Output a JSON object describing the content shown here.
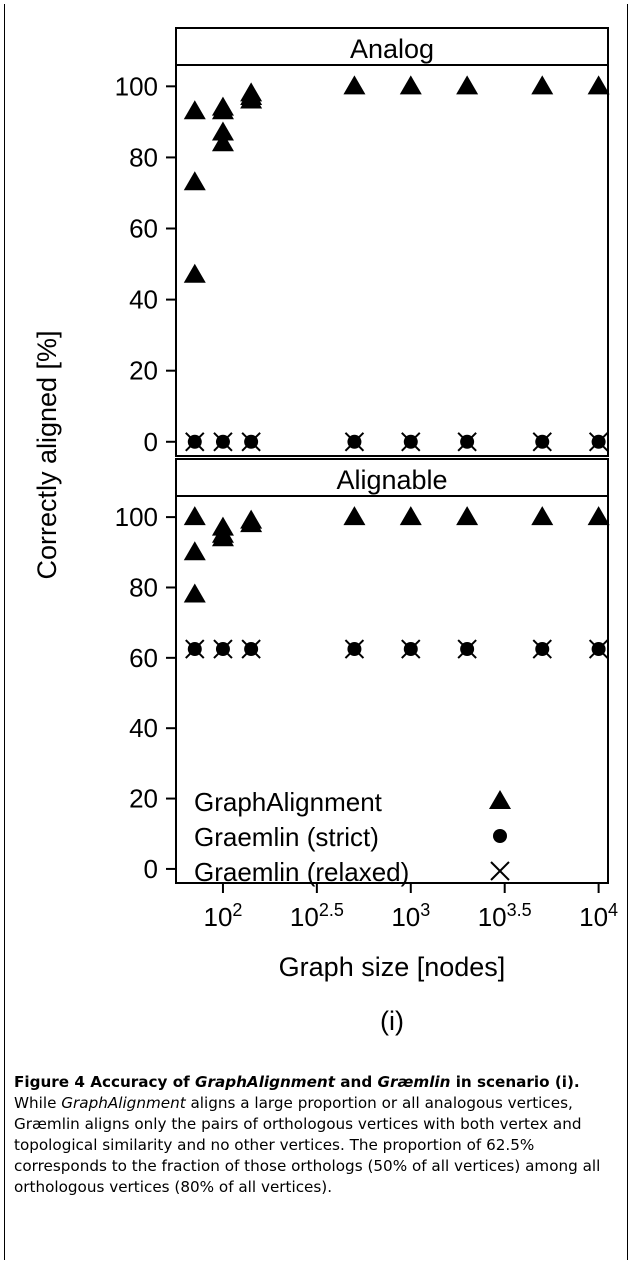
{
  "chart_data": {
    "type": "scatter",
    "panels": [
      {
        "strip_label": "Analog",
        "series": [
          {
            "name": "GraphAlignment",
            "x": [
              1.85,
              1.85,
              1.85,
              2,
              2,
              2,
              2,
              2.15,
              2.15,
              2.15,
              2.7,
              3,
              3.3,
              3.7,
              4
            ],
            "y": [
              47,
              73,
              93,
              84,
              87,
              93,
              94,
              96,
              97,
              98,
              100,
              100,
              100,
              100,
              100
            ]
          },
          {
            "name": "Graemlin (strict)",
            "x": [
              1.85,
              2,
              2.15,
              2.7,
              3,
              3.3,
              3.7,
              4
            ],
            "y": [
              0,
              0,
              0,
              0,
              0,
              0,
              0,
              0
            ]
          },
          {
            "name": "Graemlin (relaxed)",
            "x": [
              1.85,
              2,
              2.15,
              2.7,
              3,
              3.3,
              3.7,
              4
            ],
            "y": [
              0,
              0,
              0,
              0,
              0,
              0,
              0,
              0
            ]
          }
        ]
      },
      {
        "strip_label": "Alignable",
        "series": [
          {
            "name": "GraphAlignment",
            "x": [
              1.85,
              1.85,
              1.85,
              2,
              2,
              2,
              2.15,
              2.15,
              2.7,
              3,
              3.3,
              3.7,
              4
            ],
            "y": [
              78,
              90,
              100,
              94,
              95,
              97,
              98,
              99,
              100,
              100,
              100,
              100,
              100
            ]
          },
          {
            "name": "Graemlin (strict)",
            "x": [
              1.85,
              2,
              2.15,
              2.7,
              3,
              3.3,
              3.7,
              4
            ],
            "y": [
              62.5,
              62.5,
              62.5,
              62.5,
              62.5,
              62.5,
              62.5,
              62.5
            ]
          },
          {
            "name": "Graemlin (relaxed)",
            "x": [
              1.85,
              2,
              2.15,
              2.7,
              3,
              3.3,
              3.7,
              4
            ],
            "y": [
              62.5,
              62.5,
              62.5,
              62.5,
              62.5,
              62.5,
              62.5,
              62.5
            ]
          }
        ]
      }
    ],
    "xlabel": "Graph size [nodes]",
    "ylabel": "Correctly aligned [%]",
    "x_scale": "log10",
    "x_ticks": [
      {
        "value": 2,
        "base": "10",
        "exp": "2"
      },
      {
        "value": 2.5,
        "base": "10",
        "exp": "2.5"
      },
      {
        "value": 3,
        "base": "10",
        "exp": "3"
      },
      {
        "value": 3.5,
        "base": "10",
        "exp": "3.5"
      },
      {
        "value": 4,
        "base": "10",
        "exp": "4"
      }
    ],
    "xlim": [
      1.75,
      4.05
    ],
    "y_ticks": [
      0,
      20,
      40,
      60,
      80,
      100
    ],
    "ylim": [
      -4,
      106
    ],
    "legend_position": "bottom-left of lower panel",
    "legend": [
      {
        "label": "GraphAlignment",
        "symbol": "triangle"
      },
      {
        "label": "Graemlin (strict)",
        "symbol": "dot"
      },
      {
        "label": "Graemlin (relaxed)",
        "symbol": "cross"
      }
    ],
    "sublabel": "(i)",
    "grid": false
  },
  "caption": {
    "figure_label": "Figure 4",
    "title_text": " Accuracy of ",
    "title_italic_1": "GraphAlignment",
    "title_and": " and ",
    "title_italic_2": "Græmlin",
    "title_rest": " in scenario (i).",
    "body_1": " While ",
    "body_italic": "GraphAlignment",
    "body_2": " aligns a large proportion or all analogous vertices, Græmlin aligns only the pairs of orthologous vertices with both vertex and topological similarity and no other vertices. The proportion of 62.5% corresponds to the fraction of those orthologs (50% of all vertices) among all orthologous vertices (80% of all vertices)."
  }
}
